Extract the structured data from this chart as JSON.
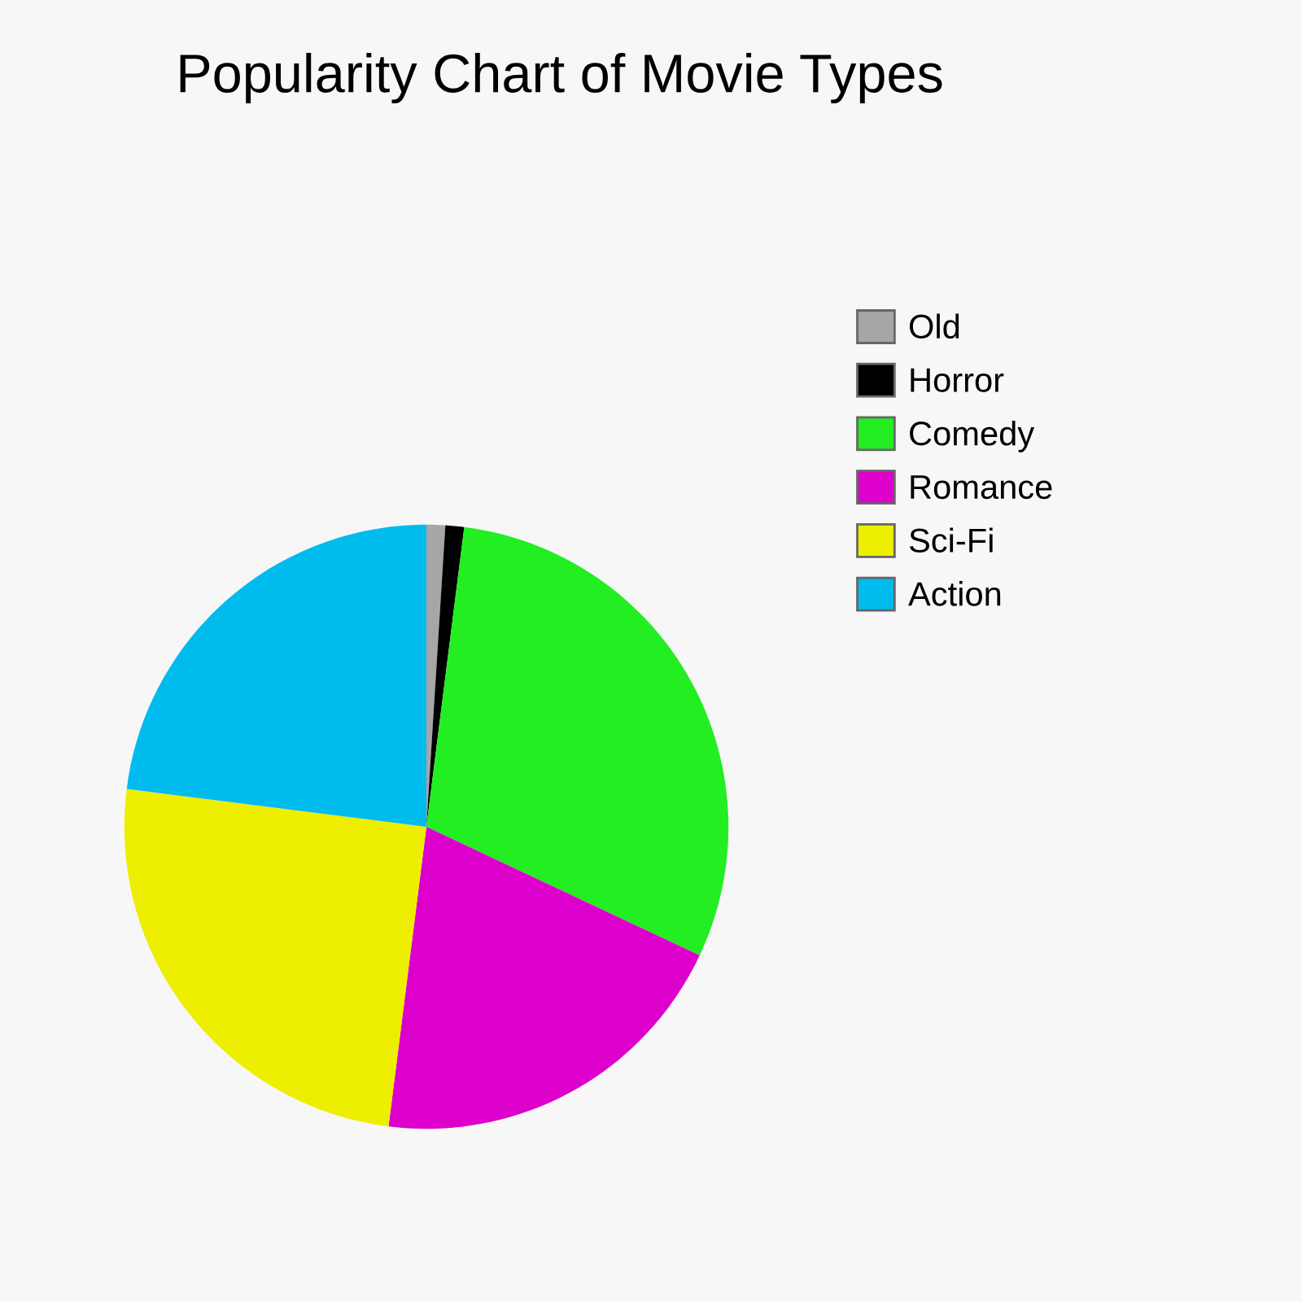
{
  "chart_data": {
    "type": "pie",
    "title": "Popularity Chart of Movie Types",
    "categories": [
      "Old",
      "Horror",
      "Comedy",
      "Romance",
      "Sci-Fi",
      "Action"
    ],
    "values": [
      1,
      1,
      30,
      20,
      25,
      23
    ],
    "colors": [
      "#a6a6a6",
      "#000000",
      "#22ee22",
      "#dd00cc",
      "#eeee00",
      "#00bbee"
    ],
    "legend": "right"
  }
}
